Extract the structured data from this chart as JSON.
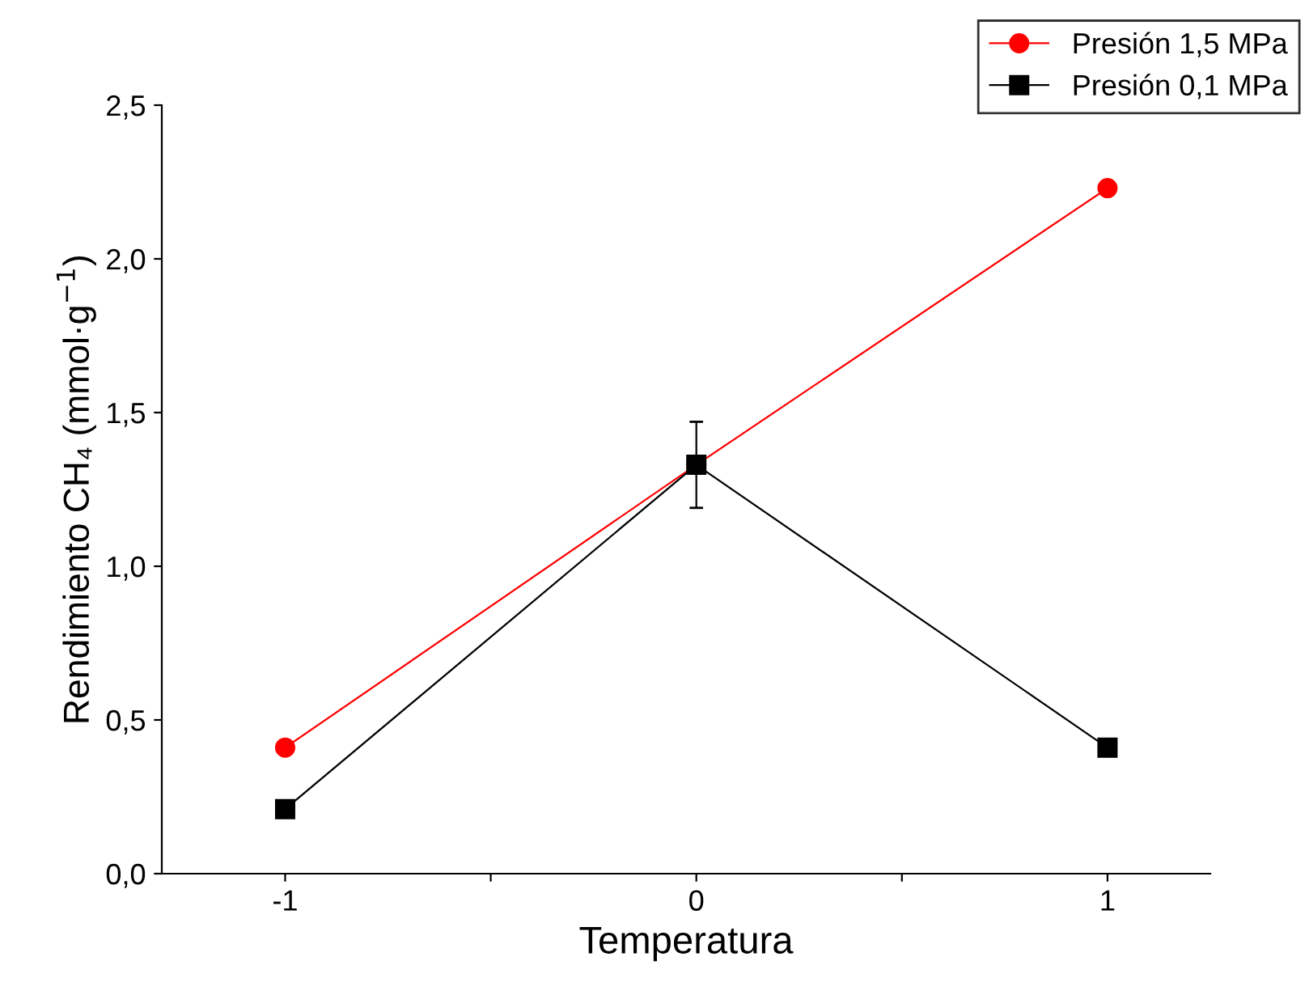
{
  "chart_data": {
    "type": "line",
    "xlabel": "Temperatura",
    "ylabel": "Rendimiento CH₄ (mmol·g$^{−1}$)",
    "x": [
      -1,
      0,
      1
    ],
    "series": [
      {
        "name": "Presión 1,5 MPa",
        "color": "#ff0000",
        "marker": "circle",
        "values": [
          0.41,
          1.33,
          2.23
        ]
      },
      {
        "name": "Presión 0,1 MPa",
        "color": "#000000",
        "marker": "square",
        "values": [
          0.21,
          1.33,
          0.41
        ],
        "errors": [
          null,
          0.14,
          null
        ]
      }
    ],
    "xlim": [
      -1.3,
      1.25
    ],
    "xticks": [
      -1,
      {
        "value": -0.5,
        "label": null
      },
      0,
      {
        "value": 0.5,
        "label": null
      },
      1
    ],
    "ylim": [
      0,
      2.5
    ],
    "yticks": [
      {
        "value": 0,
        "label": "0,0"
      },
      {
        "value": 0.5,
        "label": "0,5"
      },
      {
        "value": 1,
        "label": "1,0"
      },
      {
        "value": 1.5,
        "label": "1,5"
      },
      {
        "value": 2,
        "label": "2,0"
      },
      {
        "value": 2.5,
        "label": "2,5"
      }
    ],
    "grid": false,
    "legend": "top right",
    "line_style": "solid"
  }
}
